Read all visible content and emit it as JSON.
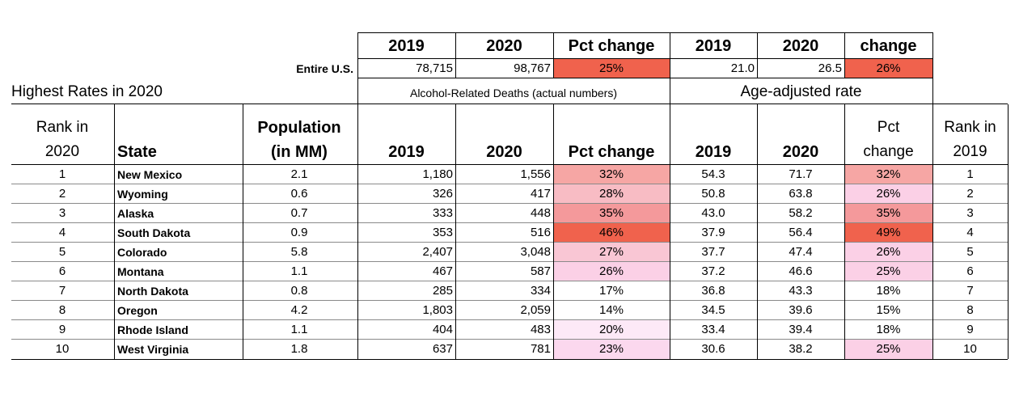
{
  "top_header": {
    "years": [
      "2019",
      "2020",
      "Pct change",
      "2019",
      "2020",
      "change"
    ]
  },
  "us_row": {
    "label": "Entire U.S.",
    "deaths_2019": "78,715",
    "deaths_2020": "98,767",
    "deaths_pct": "25%",
    "rate_2019": "21.0",
    "rate_2020": "26.5",
    "rate_pct": "26%"
  },
  "section": {
    "title": "Highest Rates in 2020",
    "deaths_group": "Alcohol-Related Deaths (actual numbers)",
    "rate_group": "Age-adjusted rate"
  },
  "columns": {
    "rank2020": [
      "Rank in",
      "2020"
    ],
    "state": "State",
    "population": [
      "Population",
      "(in MM)"
    ],
    "d2019": "2019",
    "d2020": "2020",
    "dpct": "Pct change",
    "r2019": "2019",
    "r2020": "2020",
    "rpct": [
      "Pct",
      "change"
    ],
    "rank2019": [
      "Rank in",
      "2019"
    ]
  },
  "colors": {
    "high": "#f0624d",
    "mid": "#f6a6a4",
    "low": "#fbd0e6",
    "lowest": "#fde9f7",
    "none": "#ffffff"
  },
  "chart_data": {
    "type": "table",
    "columns": [
      "Rank in 2020",
      "State",
      "Population (in MM)",
      "Deaths 2019",
      "Deaths 2020",
      "Deaths Pct change",
      "Rate 2019",
      "Rate 2020",
      "Rate Pct change",
      "Rank in 2019"
    ],
    "rows": [
      {
        "rank2020": "1",
        "state": "New Mexico",
        "pop": "2.1",
        "d2019": "1,180",
        "d2020": "1,556",
        "dpct": "32%",
        "dcol": "#f6a6a4",
        "r2019": "54.3",
        "r2020": "71.7",
        "rpct": "32%",
        "rcol": "#f6a6a4",
        "rank2019": "1"
      },
      {
        "rank2020": "2",
        "state": "Wyoming",
        "pop": "0.6",
        "d2019": "326",
        "d2020": "417",
        "dpct": "28%",
        "dcol": "#f8bcc4",
        "r2019": "50.8",
        "r2020": "63.8",
        "rpct": "26%",
        "rcol": "#fbd0e6",
        "rank2019": "2"
      },
      {
        "rank2020": "3",
        "state": "Alaska",
        "pop": "0.7",
        "d2019": "333",
        "d2020": "448",
        "dpct": "35%",
        "dcol": "#f4999b",
        "r2019": "43.0",
        "r2020": "58.2",
        "rpct": "35%",
        "rcol": "#f4999b",
        "rank2019": "3"
      },
      {
        "rank2020": "4",
        "state": "South Dakota",
        "pop": "0.9",
        "d2019": "353",
        "d2020": "516",
        "dpct": "46%",
        "dcol": "#f0624d",
        "r2019": "37.9",
        "r2020": "56.4",
        "rpct": "49%",
        "rcol": "#f0624d",
        "rank2019": "4"
      },
      {
        "rank2020": "5",
        "state": "Colorado",
        "pop": "5.8",
        "d2019": "2,407",
        "d2020": "3,048",
        "dpct": "27%",
        "dcol": "#f9c6d4",
        "r2019": "37.7",
        "r2020": "47.4",
        "rpct": "26%",
        "rcol": "#fbd0e6",
        "rank2019": "5"
      },
      {
        "rank2020": "6",
        "state": "Montana",
        "pop": "1.1",
        "d2019": "467",
        "d2020": "587",
        "dpct": "26%",
        "dcol": "#fbd0e6",
        "r2019": "37.2",
        "r2020": "46.6",
        "rpct": "25%",
        "rcol": "#fbd0e6",
        "rank2019": "6"
      },
      {
        "rank2020": "7",
        "state": "North Dakota",
        "pop": "0.8",
        "d2019": "285",
        "d2020": "334",
        "dpct": "17%",
        "dcol": "#ffffff",
        "r2019": "36.8",
        "r2020": "43.3",
        "rpct": "18%",
        "rcol": "#ffffff",
        "rank2019": "7"
      },
      {
        "rank2020": "8",
        "state": "Oregon",
        "pop": "4.2",
        "d2019": "1,803",
        "d2020": "2,059",
        "dpct": "14%",
        "dcol": "#ffffff",
        "r2019": "34.5",
        "r2020": "39.6",
        "rpct": "15%",
        "rcol": "#ffffff",
        "rank2019": "8"
      },
      {
        "rank2020": "9",
        "state": "Rhode Island",
        "pop": "1.1",
        "d2019": "404",
        "d2020": "483",
        "dpct": "20%",
        "dcol": "#fde9f7",
        "r2019": "33.4",
        "r2020": "39.4",
        "rpct": "18%",
        "rcol": "#ffffff",
        "rank2019": "9"
      },
      {
        "rank2020": "10",
        "state": "West Virginia",
        "pop": "1.8",
        "d2019": "637",
        "d2020": "781",
        "dpct": "23%",
        "dcol": "#fbd8ee",
        "r2019": "30.6",
        "r2020": "38.2",
        "rpct": "25%",
        "rcol": "#fbd0e6",
        "rank2019": "10"
      }
    ]
  }
}
